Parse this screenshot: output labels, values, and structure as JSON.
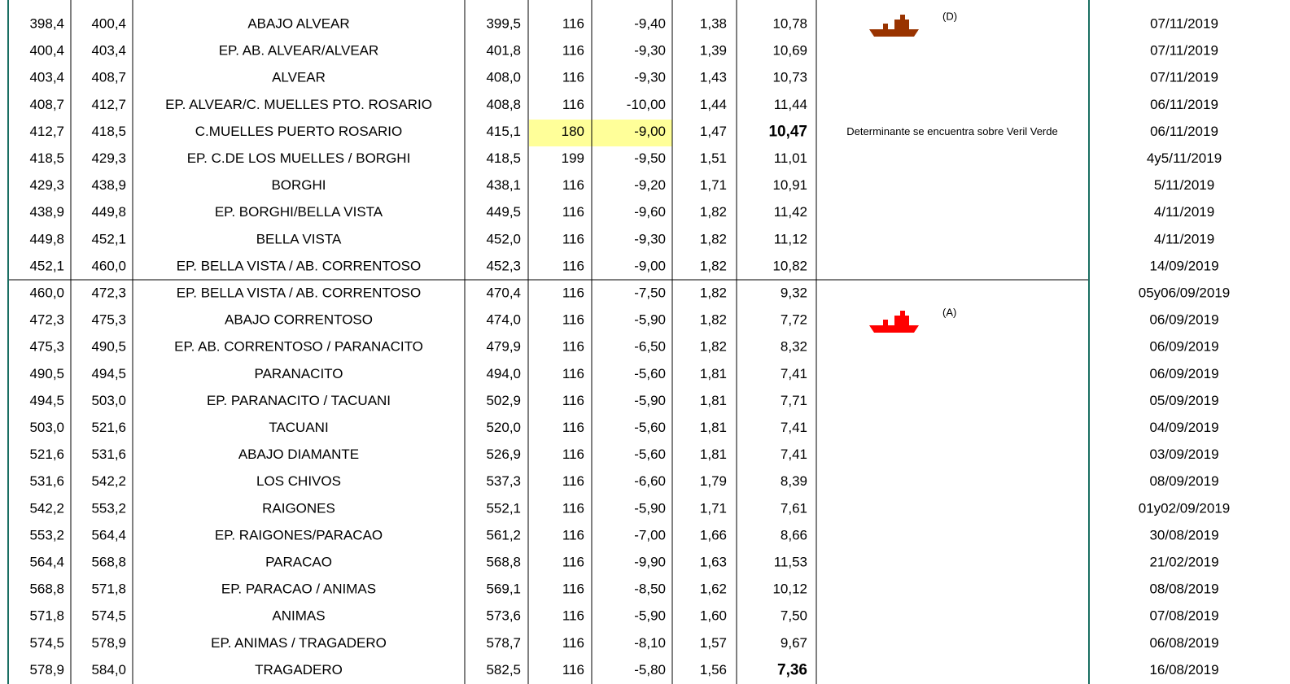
{
  "table": {
    "rows": [
      [
        "398,4",
        "400,4",
        "ABAJO ALVEAR",
        "399,5",
        "116",
        "-9,40",
        "1,38",
        "10,78",
        "07/11/2019"
      ],
      [
        "400,4",
        "403,4",
        "EP. AB. ALVEAR/ALVEAR",
        "401,8",
        "116",
        "-9,30",
        "1,39",
        "10,69",
        "07/11/2019"
      ],
      [
        "403,4",
        "408,7",
        "ALVEAR",
        "408,0",
        "116",
        "-9,30",
        "1,43",
        "10,73",
        "07/11/2019"
      ],
      [
        "408,7",
        "412,7",
        "EP. ALVEAR/C. MUELLES PTO. ROSARIO",
        "408,8",
        "116",
        "-10,00",
        "1,44",
        "11,44",
        "06/11/2019"
      ],
      [
        "412,7",
        "418,5",
        "C.MUELLES PUERTO ROSARIO",
        "415,1",
        "180",
        "-9,00",
        "1,47",
        "10,47",
        "06/11/2019"
      ],
      [
        "418,5",
        "429,3",
        "EP. C.DE LOS MUELLES / BORGHI",
        "418,5",
        "199",
        "-9,50",
        "1,51",
        "11,01",
        "4y5/11/2019"
      ],
      [
        "429,3",
        "438,9",
        "BORGHI",
        "438,1",
        "116",
        "-9,20",
        "1,71",
        "10,91",
        "5/11/2019"
      ],
      [
        "438,9",
        "449,8",
        "EP. BORGHI/BELLA VISTA",
        "449,5",
        "116",
        "-9,60",
        "1,82",
        "11,42",
        "4/11/2019"
      ],
      [
        "449,8",
        "452,1",
        "BELLA VISTA",
        "452,0",
        "116",
        "-9,30",
        "1,82",
        "11,12",
        "4/11/2019"
      ],
      [
        "452,1",
        "460,0",
        "EP. BELLA VISTA / AB. CORRENTOSO",
        "452,3",
        "116",
        "-9,00",
        "1,82",
        "10,82",
        "14/09/2019"
      ],
      [
        "460,0",
        "472,3",
        "EP. BELLA VISTA / AB. CORRENTOSO",
        "470,4",
        "116",
        "-7,50",
        "1,82",
        "9,32",
        "05y06/09/2019"
      ],
      [
        "472,3",
        "475,3",
        "ABAJO CORRENTOSO",
        "474,0",
        "116",
        "-5,90",
        "1,82",
        "7,72",
        "06/09/2019"
      ],
      [
        "475,3",
        "490,5",
        "EP. AB. CORRENTOSO / PARANACITO",
        "479,9",
        "116",
        "-6,50",
        "1,82",
        "8,32",
        "06/09/2019"
      ],
      [
        "490,5",
        "494,5",
        "PARANACITO",
        "494,0",
        "116",
        "-5,60",
        "1,81",
        "7,41",
        "06/09/2019"
      ],
      [
        "494,5",
        "503,0",
        "EP. PARANACITO / TACUANI",
        "502,9",
        "116",
        "-5,90",
        "1,81",
        "7,71",
        "05/09/2019"
      ],
      [
        "503,0",
        "521,6",
        "TACUANI",
        "520,0",
        "116",
        "-5,60",
        "1,81",
        "7,41",
        "04/09/2019"
      ],
      [
        "521,6",
        "531,6",
        "ABAJO DIAMANTE",
        "526,9",
        "116",
        "-5,60",
        "1,81",
        "7,41",
        "03/09/2019"
      ],
      [
        "531,6",
        "542,2",
        "LOS CHIVOS",
        "537,3",
        "116",
        "-6,60",
        "1,79",
        "8,39",
        "08/09/2019"
      ],
      [
        "542,2",
        "553,2",
        "RAIGONES",
        "552,1",
        "116",
        "-5,90",
        "1,71",
        "7,61",
        "01y02/09/2019"
      ],
      [
        "553,2",
        "564,4",
        "EP. RAIGONES/PARACAO",
        "561,2",
        "116",
        "-7,00",
        "1,66",
        "8,66",
        "30/08/2019"
      ],
      [
        "564,4",
        "568,8",
        "PARACAO",
        "568,8",
        "116",
        "-9,90",
        "1,63",
        "11,53",
        "21/02/2019"
      ],
      [
        "568,8",
        "571,8",
        "EP. PARACAO / ANIMAS",
        "569,1",
        "116",
        "-8,50",
        "1,62",
        "10,12",
        "08/08/2019"
      ],
      [
        "571,8",
        "574,5",
        "ANIMAS",
        "573,6",
        "116",
        "-5,90",
        "1,60",
        "7,50",
        "07/08/2019"
      ],
      [
        "574,5",
        "578,9",
        "EP. ANIMAS / TRAGADERO",
        "578,7",
        "116",
        "-8,10",
        "1,57",
        "9,67",
        "06/08/2019"
      ],
      [
        "578,9",
        "584,0",
        "TRAGADERO",
        "582,5",
        "116",
        "-5,80",
        "1,56",
        "7,36",
        "16/08/2019"
      ]
    ],
    "notes": {
      "0": "(D)",
      "4": "Determinante se encuentra sobre Veril Verde",
      "11": "(A)"
    }
  }
}
